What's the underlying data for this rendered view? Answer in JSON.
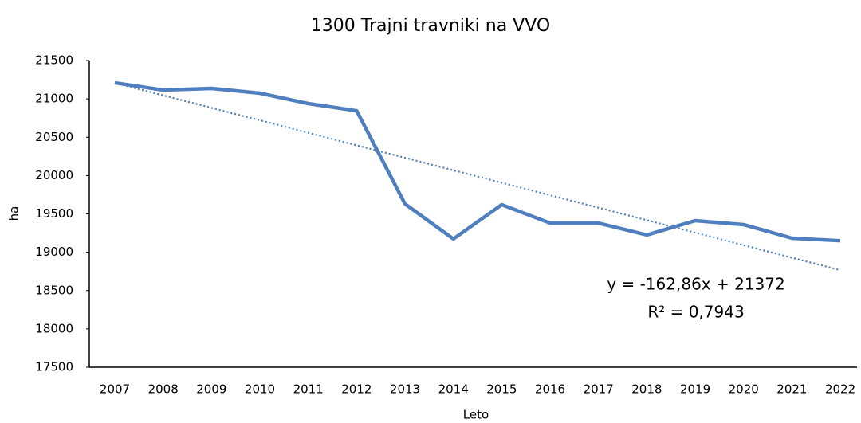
{
  "chart_data": {
    "type": "line",
    "title": "1300 Trajni travniki na VVO",
    "x_label": "Leto",
    "y_label": "ha",
    "categories": [
      "2007",
      "2008",
      "2009",
      "2010",
      "2011",
      "2012",
      "2013",
      "2014",
      "2015",
      "2016",
      "2017",
      "2018",
      "2019",
      "2020",
      "2021",
      "2022"
    ],
    "series": [
      {
        "name": "1300 Trajni travniki na VVO",
        "color": "#4f7fbf",
        "values": [
          21210,
          21115,
          21136,
          21074,
          20939,
          20845,
          19630,
          19173,
          19620,
          19380,
          19380,
          19225,
          19412,
          19360,
          19183,
          19150
        ]
      }
    ],
    "trendline": {
      "color": "#4f7fbf",
      "equation": "y = -162,86x + 21372",
      "r_squared": "R² = 0,7943",
      "values": [
        21209,
        21046,
        20883,
        20721,
        20558,
        20395,
        20232,
        20069,
        19906,
        19743,
        19581,
        19418,
        19255,
        19092,
        18929,
        18766
      ]
    },
    "ylim": [
      17500,
      21500
    ],
    "yticks": [
      17500,
      18000,
      18500,
      19000,
      19500,
      20000,
      20500,
      21000,
      21500
    ],
    "grid": false
  }
}
